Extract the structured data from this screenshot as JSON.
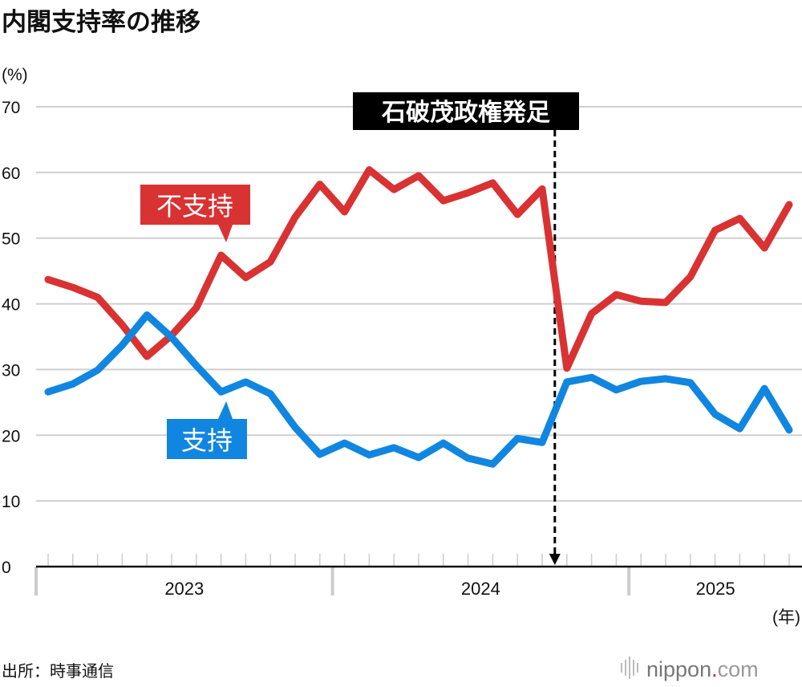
{
  "chart_data": {
    "type": "line",
    "title": "内閣支持率の推移",
    "ylabel": "(%)",
    "xlabel": "(年)",
    "ylim": [
      0,
      70
    ],
    "yticks": [
      0,
      10,
      20,
      30,
      40,
      50,
      60,
      70
    ],
    "grid": true,
    "x_start": "2023-01",
    "x_end": "2025-07",
    "year_labels": [
      "2023",
      "2024",
      "2025"
    ],
    "series": [
      {
        "name": "不支持",
        "color": "#d93232",
        "values": [
          43.7,
          42.5,
          41.0,
          36.8,
          32.0,
          35.2,
          39.4,
          47.4,
          44.0,
          46.4,
          53.2,
          58.2,
          54.0,
          60.4,
          57.4,
          59.5,
          55.7,
          56.9,
          58.4,
          53.6,
          57.5,
          30.2,
          38.5,
          41.4,
          40.4,
          40.2,
          44.1,
          51.2,
          53.0,
          48.5,
          55.1
        ]
      },
      {
        "name": "支持",
        "color": "#1186e0",
        "values": [
          26.6,
          27.8,
          29.9,
          33.7,
          38.3,
          34.9,
          30.6,
          26.6,
          28.1,
          26.3,
          21.2,
          17.1,
          18.8,
          17.0,
          18.1,
          16.6,
          18.8,
          16.5,
          15.6,
          19.5,
          18.9,
          28.1,
          28.8,
          26.9,
          28.2,
          28.6,
          28.0,
          23.2,
          21.0,
          27.1,
          20.8
        ]
      }
    ],
    "annotation": {
      "label": "石破茂政権発足",
      "month_index": 21
    }
  },
  "source": "出所：時事通信",
  "logo": "nippon.com"
}
